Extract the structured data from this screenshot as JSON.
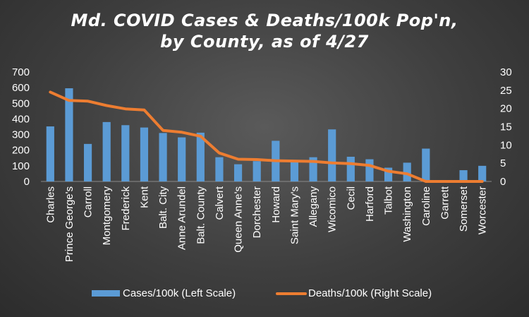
{
  "chart_data": {
    "type": "bar",
    "title_line1": "Md. COVID Cases & Deaths/100k Pop'n,",
    "title_line2": "by County, as of 4/27",
    "categories": [
      "Charles",
      "Prince George's",
      "Carroll",
      "Montgomery",
      "Frederick",
      "Kent",
      "Balt. City",
      "Anne Arundel",
      "Balt. County",
      "Calvert",
      "Queen Anne's",
      "Dorchester",
      "Howard",
      "Saint Mary's",
      "Allegany",
      "Wicomico",
      "Cecil",
      "Harford",
      "Talbot",
      "Washington",
      "Caroline",
      "Garrett",
      "Somerset",
      "Worcester"
    ],
    "series": [
      {
        "name": "Cases/100k (Left Scale)",
        "type": "bar",
        "axis": "left",
        "color": "#5b9bd5",
        "values": [
          352,
          596,
          240,
          380,
          360,
          345,
          310,
          282,
          312,
          155,
          110,
          130,
          260,
          128,
          155,
          333,
          158,
          142,
          88,
          120,
          210,
          0,
          72,
          100
        ]
      },
      {
        "name": "Deaths/100k (Right Scale)",
        "type": "line",
        "axis": "right",
        "color": "#ed7d31",
        "values": [
          24.5,
          22.2,
          22.0,
          20.8,
          19.9,
          19.6,
          14.0,
          13.5,
          12.4,
          7.8,
          6.1,
          6.0,
          5.7,
          5.6,
          5.5,
          5.1,
          4.9,
          4.4,
          2.8,
          2.1,
          0,
          0,
          0,
          0
        ]
      }
    ],
    "y_left": {
      "min": 0,
      "max": 700,
      "ticks": [
        "0",
        "100",
        "200",
        "300",
        "400",
        "500",
        "600",
        "700"
      ]
    },
    "y_right": {
      "min": 0,
      "max": 30,
      "ticks": [
        "0",
        "5",
        "10",
        "15",
        "20",
        "25",
        "30"
      ]
    },
    "grid": false,
    "legend_position": "bottom"
  }
}
